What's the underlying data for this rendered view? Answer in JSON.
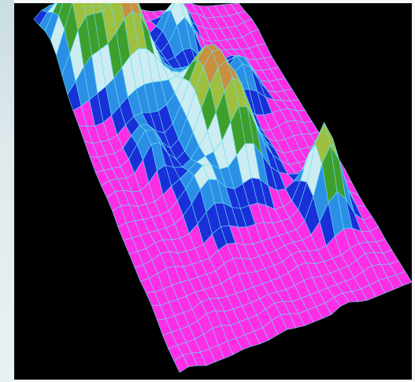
{
  "scene": {
    "background_color": "#000000",
    "frame_color": "#dfe9ed",
    "mesh_color": "#66e0f0",
    "palette": [
      "#ff2ee6",
      "#1930d8",
      "#2c8fe6",
      "#ccecf2",
      "#3f9f2c",
      "#9fbf3f",
      "#c98f3f"
    ],
    "visualization": "3d-terrain-wireframe"
  }
}
